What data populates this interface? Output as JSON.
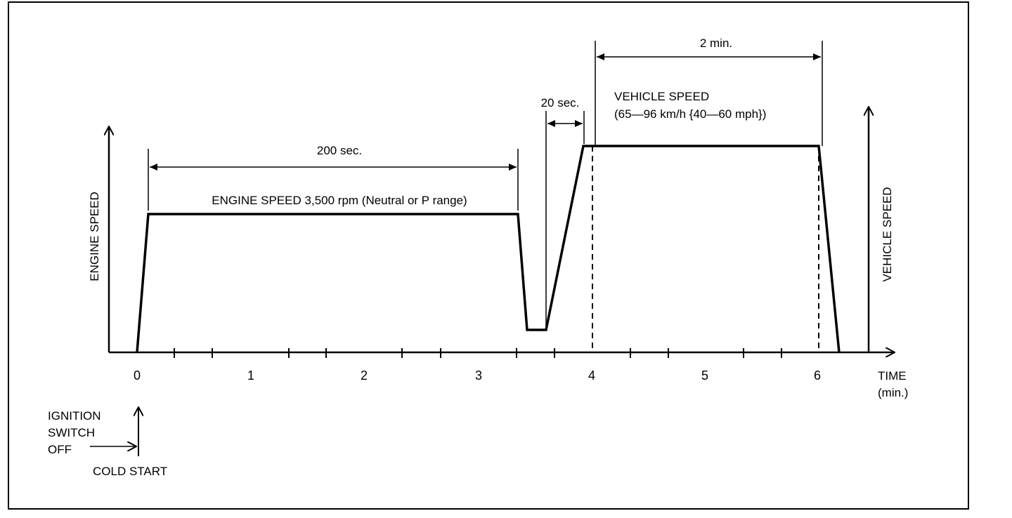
{
  "diagram": {
    "labels": {
      "engine_speed_axis": "ENGINE SPEED",
      "vehicle_speed_axis": "VEHICLE SPEED",
      "time_axis": "TIME",
      "time_unit": "(min.)",
      "ignition_line1": "IGNITION",
      "ignition_line2": "SWITCH",
      "ignition_line3": "OFF",
      "cold_start": "COLD START",
      "duration_200": "200 sec.",
      "duration_20": "20 sec.",
      "duration_2min": "2 min.",
      "engine_speed_note": "ENGINE SPEED 3,500 rpm (Neutral or P range)",
      "vehicle_speed_note_line1": "VEHICLE SPEED",
      "vehicle_speed_note_line2": "(65—96 km/h {40—60 mph})"
    },
    "time_ticks": [
      "0",
      "1",
      "2",
      "3",
      "4",
      "5",
      "6"
    ]
  }
}
